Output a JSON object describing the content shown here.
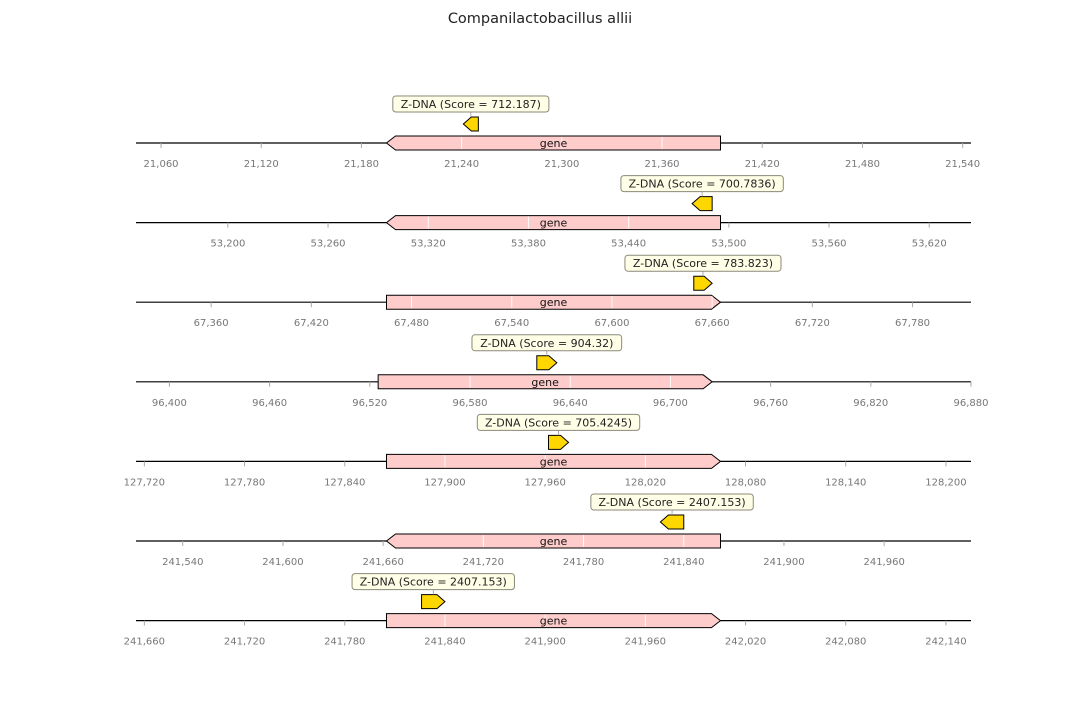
{
  "title": "Companilactobacillus allii",
  "colors": {
    "gene_fill": "#ffcccc",
    "feature_fill": "#ffd700",
    "label_box_fill": "#fffee6",
    "label_box_stroke": "#8a8a7a",
    "axis": "#000000",
    "tick_text": "#777777"
  },
  "tracks": [
    {
      "gene": {
        "label": "gene",
        "start": 21195,
        "end": 21395,
        "strand": -1
      },
      "feature": {
        "label": "Z-DNA (Score = 712.187)",
        "start": 21241,
        "end": 21250,
        "strand": -1
      },
      "ticks": [
        "21,060",
        "21,120",
        "21,180",
        "21,240",
        "21,300",
        "21,360",
        "21,420",
        "21,480",
        "21,540"
      ],
      "tick_values": [
        21060,
        21120,
        21180,
        21240,
        21300,
        21360,
        21420,
        21480,
        21540
      ],
      "view": [
        21045,
        21545
      ]
    },
    {
      "gene": {
        "label": "gene",
        "start": 53295,
        "end": 53495,
        "strand": -1
      },
      "feature": {
        "label": "Z-DNA (Score = 700.7836)",
        "start": 53478,
        "end": 53490,
        "strand": -1
      },
      "ticks": [
        "53,200",
        "53,260",
        "53,320",
        "53,380",
        "53,440",
        "53,500",
        "53,560",
        "53,620"
      ],
      "tick_values": [
        53200,
        53260,
        53320,
        53380,
        53440,
        53500,
        53560,
        53620
      ],
      "view": [
        53145,
        53645
      ]
    },
    {
      "gene": {
        "label": "gene",
        "start": 67465,
        "end": 67665,
        "strand": 1
      },
      "feature": {
        "label": "Z-DNA (Score = 783.823)",
        "start": 67649,
        "end": 67660,
        "strand": 1
      },
      "ticks": [
        "67,360",
        "67,420",
        "67,480",
        "67,540",
        "67,600",
        "67,660",
        "67,720",
        "67,780"
      ],
      "tick_values": [
        67360,
        67420,
        67480,
        67540,
        67600,
        67660,
        67720,
        67780
      ],
      "view": [
        67315,
        67815
      ]
    },
    {
      "gene": {
        "label": "gene",
        "start": 96525,
        "end": 96725,
        "strand": 1
      },
      "feature": {
        "label": "Z-DNA (Score = 904.32)",
        "start": 96620,
        "end": 96632,
        "strand": 1
      },
      "ticks": [
        "96,400",
        "96,460",
        "96,520",
        "96,580",
        "96,640",
        "96,700",
        "96,760",
        "96,820",
        "96,880"
      ],
      "tick_values": [
        96400,
        96460,
        96520,
        96580,
        96640,
        96700,
        96760,
        96820,
        96880
      ],
      "view": [
        96380,
        96880
      ]
    },
    {
      "gene": {
        "label": "gene",
        "start": 127865,
        "end": 128065,
        "strand": 1
      },
      "feature": {
        "label": "Z-DNA (Score = 705.4245)",
        "start": 127962,
        "end": 127974,
        "strand": 1
      },
      "ticks": [
        "127,720",
        "127,780",
        "127,840",
        "127,900",
        "127,960",
        "128,020",
        "128,080",
        "128,140",
        "128,200"
      ],
      "tick_values": [
        127720,
        127780,
        127840,
        127900,
        127960,
        128020,
        128080,
        128140,
        128200
      ],
      "view": [
        127715,
        128215
      ]
    },
    {
      "gene": {
        "label": "gene",
        "start": 241662,
        "end": 241862,
        "strand": -1
      },
      "feature": {
        "label": "Z-DNA (Score = 2407.153)",
        "start": 241826,
        "end": 241840,
        "strand": -1
      },
      "ticks": [
        "241,540",
        "241,600",
        "241,660",
        "241,720",
        "241,780",
        "241,840",
        "241,900",
        "241,960"
      ],
      "tick_values": [
        241540,
        241600,
        241660,
        241720,
        241780,
        241840,
        241900,
        241960
      ],
      "view": [
        241512,
        242012
      ]
    },
    {
      "gene": {
        "label": "gene",
        "start": 241805,
        "end": 242005,
        "strand": 1
      },
      "feature": {
        "label": "Z-DNA (Score = 2407.153)",
        "start": 241826,
        "end": 241840,
        "strand": 1
      },
      "ticks": [
        "241,660",
        "241,720",
        "241,780",
        "241,840",
        "241,900",
        "241,960",
        "242,020",
        "242,080",
        "242,140"
      ],
      "tick_values": [
        241660,
        241720,
        241780,
        241840,
        241900,
        241960,
        242020,
        242080,
        242140
      ],
      "view": [
        241655,
        242155
      ]
    }
  ]
}
